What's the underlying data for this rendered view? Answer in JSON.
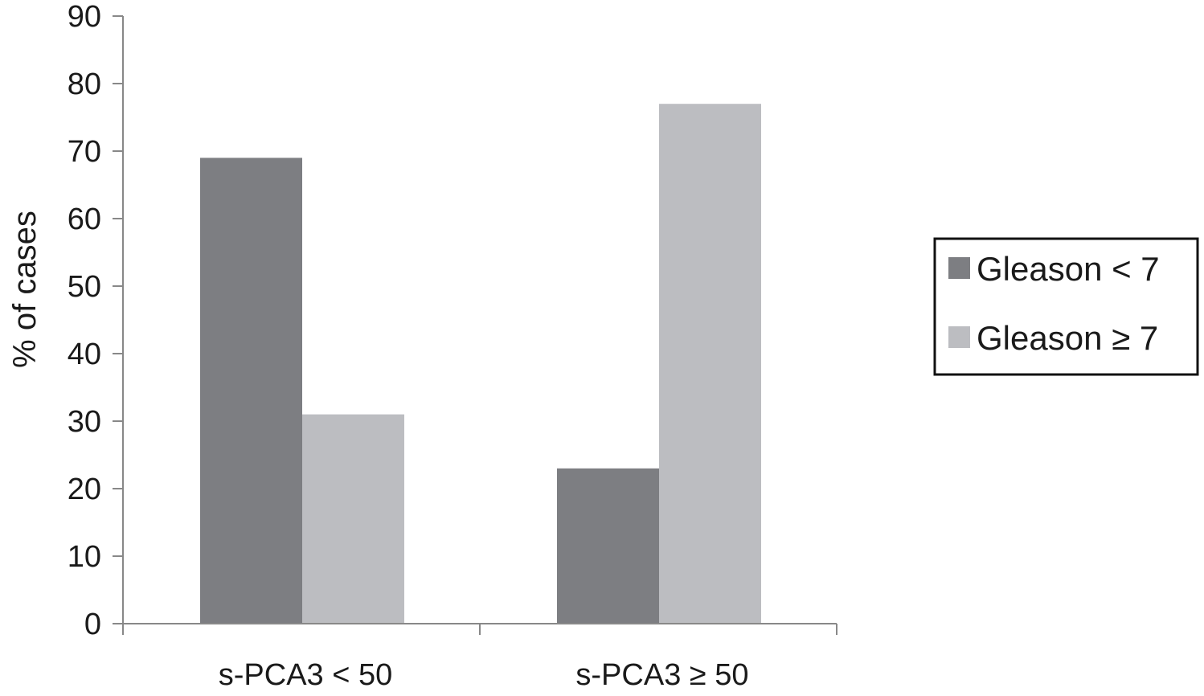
{
  "chart_data": {
    "type": "bar",
    "title": "",
    "xlabel": "",
    "ylabel": "% of cases",
    "ylim": [
      0,
      90
    ],
    "yticks": [
      0,
      10,
      20,
      30,
      40,
      50,
      60,
      70,
      80,
      90
    ],
    "categories": [
      "s-PCA3 < 50",
      "s-PCA3 ≥ 50"
    ],
    "series": [
      {
        "name": "Gleason < 7",
        "values": [
          69,
          23
        ],
        "color": "#7d7e82"
      },
      {
        "name": "Gleason ≥ 7",
        "values": [
          31,
          77
        ],
        "color": "#bcbdc1"
      }
    ],
    "grid": false,
    "legend_position": "right"
  }
}
